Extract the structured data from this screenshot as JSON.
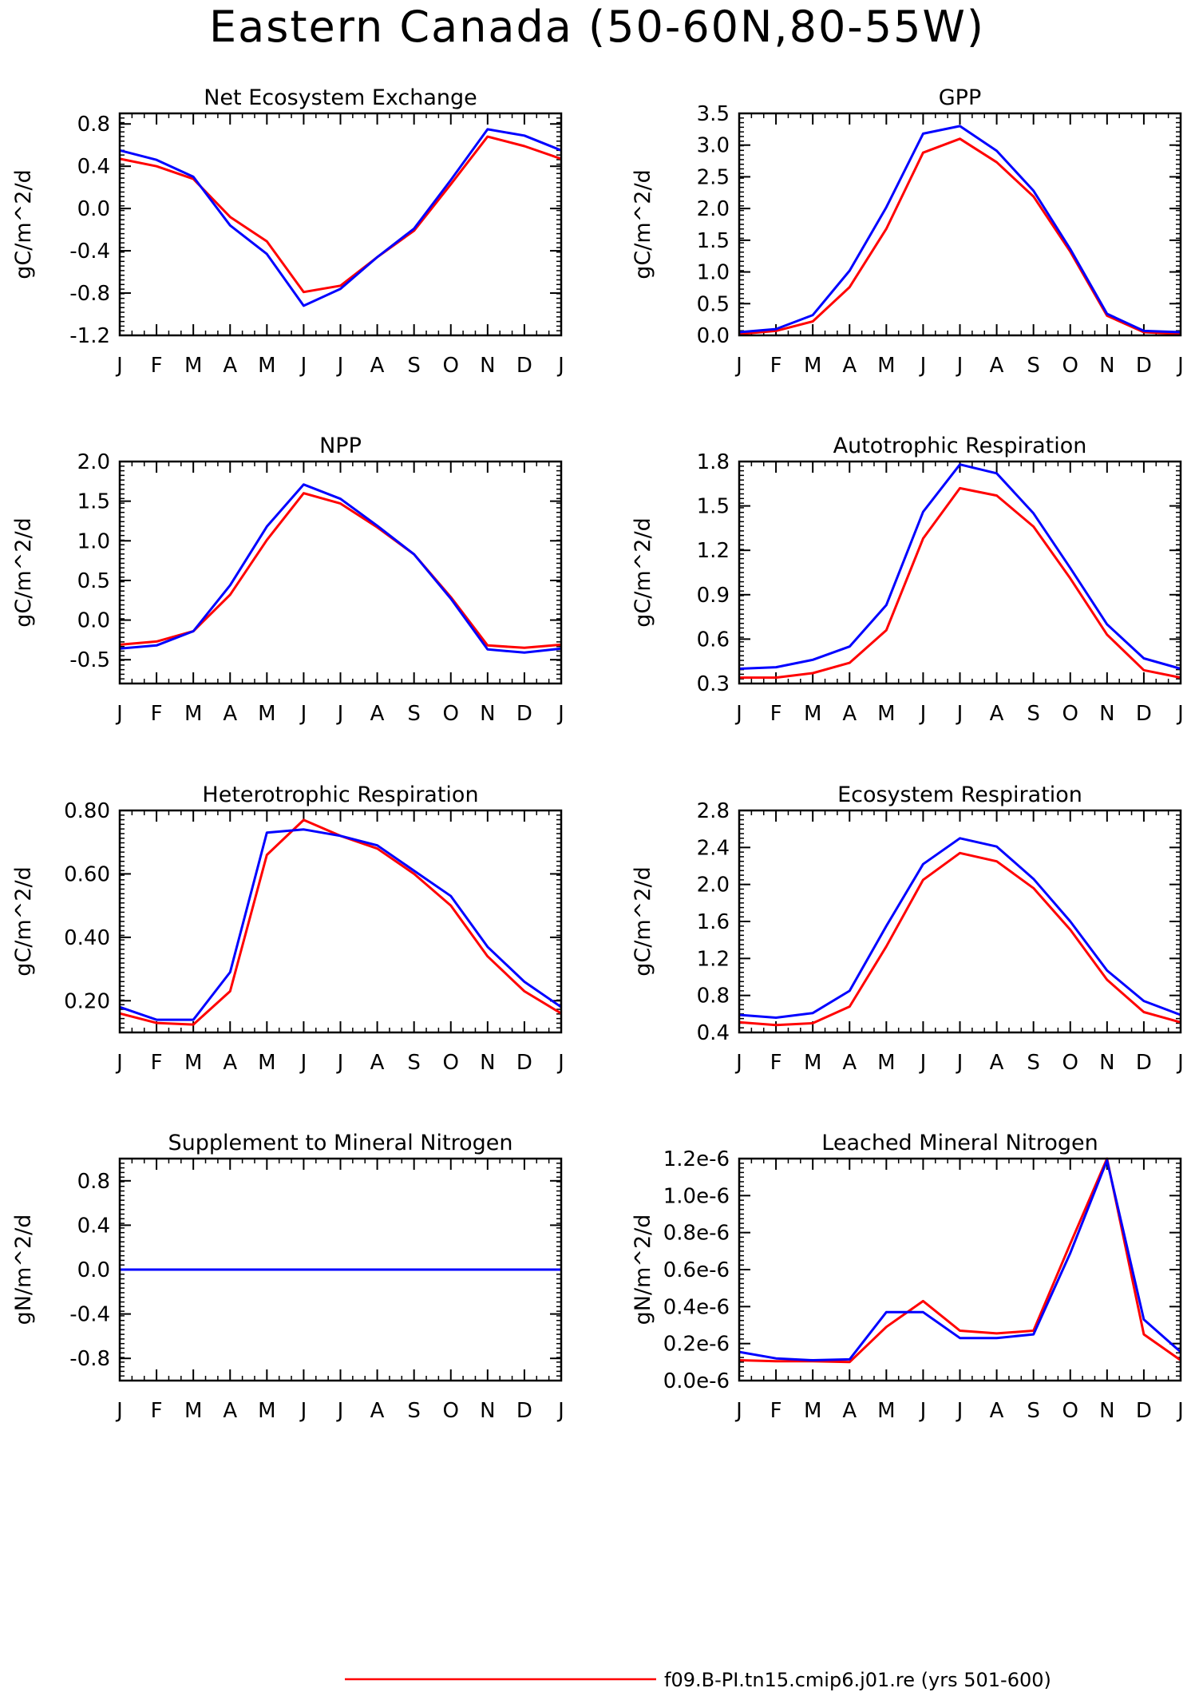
{
  "figure": {
    "title": "Eastern Canada (50-60N,80-55W)",
    "legend": [
      {
        "label": "f09.B-PI.tn15.cmip6.j01.re (yrs 501-600)",
        "color": "#ff0000"
      }
    ]
  },
  "chart_data": [
    {
      "type": "line",
      "title": "Net Ecosystem Exchange",
      "ylabel": "gC/m^2/d",
      "x": [
        "J",
        "F",
        "M",
        "A",
        "M",
        "J",
        "J",
        "A",
        "S",
        "O",
        "N",
        "D",
        "J"
      ],
      "ylim": [
        -1.2,
        0.9
      ],
      "yticks": [
        -1.2,
        -0.8,
        -0.4,
        0.0,
        0.4,
        0.8
      ],
      "ytick_labels": [
        "-1.2",
        "-0.8",
        "-0.4",
        "0.0",
        "0.4",
        "0.8"
      ],
      "series": [
        {
          "name": "f09.B-PI.tn15.cmip6.j01.re (yrs 501-600)",
          "color": "#ff0000",
          "values": [
            0.47,
            0.4,
            0.28,
            -0.08,
            -0.31,
            -0.79,
            -0.73,
            -0.46,
            -0.21,
            0.23,
            0.68,
            0.59,
            0.47
          ]
        },
        {
          "color": "#0000ff",
          "values": [
            0.55,
            0.46,
            0.3,
            -0.16,
            -0.43,
            -0.92,
            -0.76,
            -0.46,
            -0.19,
            0.27,
            0.75,
            0.69,
            0.55
          ]
        }
      ]
    },
    {
      "type": "line",
      "title": "GPP",
      "ylabel": "gC/m^2/d",
      "x": [
        "J",
        "F",
        "M",
        "A",
        "M",
        "J",
        "J",
        "A",
        "S",
        "O",
        "N",
        "D",
        "J"
      ],
      "ylim": [
        0.0,
        3.5
      ],
      "yticks": [
        0.0,
        0.5,
        1.0,
        1.5,
        2.0,
        2.5,
        3.0,
        3.5
      ],
      "ytick_labels": [
        "0.0",
        "0.5",
        "1.0",
        "1.5",
        "2.0",
        "2.5",
        "3.0",
        "3.5"
      ],
      "series": [
        {
          "color": "#ff0000",
          "values": [
            0.02,
            0.07,
            0.22,
            0.76,
            1.68,
            2.88,
            3.1,
            2.73,
            2.19,
            1.32,
            0.31,
            0.05,
            0.02
          ]
        },
        {
          "color": "#0000ff",
          "values": [
            0.05,
            0.1,
            0.32,
            1.02,
            2.02,
            3.18,
            3.3,
            2.91,
            2.28,
            1.36,
            0.34,
            0.07,
            0.05
          ]
        }
      ]
    },
    {
      "type": "line",
      "title": "NPP",
      "ylabel": "gC/m^2/d",
      "x": [
        "J",
        "F",
        "M",
        "A",
        "M",
        "J",
        "J",
        "A",
        "S",
        "O",
        "N",
        "D",
        "J"
      ],
      "ylim": [
        -0.8,
        2.0
      ],
      "yticks": [
        -0.5,
        0.0,
        0.5,
        1.0,
        1.5,
        2.0
      ],
      "ytick_labels": [
        "-0.5",
        "0.0",
        "0.5",
        "1.0",
        "1.5",
        "2.0"
      ],
      "series": [
        {
          "color": "#ff0000",
          "values": [
            -0.31,
            -0.27,
            -0.14,
            0.32,
            1.01,
            1.6,
            1.47,
            1.17,
            0.83,
            0.29,
            -0.32,
            -0.35,
            -0.31
          ]
        },
        {
          "color": "#0000ff",
          "values": [
            -0.36,
            -0.32,
            -0.14,
            0.44,
            1.18,
            1.71,
            1.53,
            1.19,
            0.83,
            0.27,
            -0.37,
            -0.41,
            -0.36
          ]
        }
      ]
    },
    {
      "type": "line",
      "title": "Autotrophic Respiration",
      "ylabel": "gC/m^2/d",
      "x": [
        "J",
        "F",
        "M",
        "A",
        "M",
        "J",
        "J",
        "A",
        "S",
        "O",
        "N",
        "D",
        "J"
      ],
      "ylim": [
        0.3,
        1.8
      ],
      "yticks": [
        0.3,
        0.6,
        0.9,
        1.2,
        1.5,
        1.8
      ],
      "ytick_labels": [
        "0.3",
        "0.6",
        "0.9",
        "1.2",
        "1.5",
        "1.8"
      ],
      "series": [
        {
          "color": "#ff0000",
          "values": [
            0.34,
            0.34,
            0.37,
            0.44,
            0.66,
            1.28,
            1.62,
            1.57,
            1.36,
            1.01,
            0.63,
            0.39,
            0.34
          ]
        },
        {
          "color": "#0000ff",
          "values": [
            0.4,
            0.41,
            0.46,
            0.55,
            0.83,
            1.46,
            1.78,
            1.72,
            1.45,
            1.08,
            0.7,
            0.47,
            0.4
          ]
        }
      ]
    },
    {
      "type": "line",
      "title": "Heterotrophic Respiration",
      "ylabel": "gC/m^2/d",
      "x": [
        "J",
        "F",
        "M",
        "A",
        "M",
        "J",
        "J",
        "A",
        "S",
        "O",
        "N",
        "D",
        "J"
      ],
      "ylim": [
        0.1,
        0.8
      ],
      "yticks": [
        0.2,
        0.4,
        0.6,
        0.8
      ],
      "ytick_labels": [
        "0.20",
        "0.40",
        "0.60",
        "0.80"
      ],
      "series": [
        {
          "color": "#ff0000",
          "values": [
            0.16,
            0.13,
            0.125,
            0.23,
            0.66,
            0.77,
            0.72,
            0.68,
            0.6,
            0.5,
            0.34,
            0.23,
            0.16
          ]
        },
        {
          "color": "#0000ff",
          "values": [
            0.18,
            0.14,
            0.14,
            0.29,
            0.73,
            0.74,
            0.72,
            0.69,
            0.61,
            0.53,
            0.37,
            0.26,
            0.18
          ]
        }
      ]
    },
    {
      "type": "line",
      "title": "Ecosystem Respiration",
      "ylabel": "gC/m^2/d",
      "x": [
        "J",
        "F",
        "M",
        "A",
        "M",
        "J",
        "J",
        "A",
        "S",
        "O",
        "N",
        "D",
        "J"
      ],
      "ylim": [
        0.4,
        2.8
      ],
      "yticks": [
        0.4,
        0.8,
        1.2,
        1.6,
        2.0,
        2.4,
        2.8
      ],
      "ytick_labels": [
        "0.4",
        "0.8",
        "1.2",
        "1.6",
        "2.0",
        "2.4",
        "2.8"
      ],
      "series": [
        {
          "color": "#ff0000",
          "values": [
            0.51,
            0.48,
            0.5,
            0.68,
            1.33,
            2.05,
            2.34,
            2.25,
            1.96,
            1.51,
            0.97,
            0.62,
            0.51
          ]
        },
        {
          "color": "#0000ff",
          "values": [
            0.59,
            0.56,
            0.61,
            0.85,
            1.55,
            2.22,
            2.5,
            2.41,
            2.06,
            1.6,
            1.07,
            0.74,
            0.59
          ]
        }
      ]
    },
    {
      "type": "line",
      "title": "Supplement to Mineral Nitrogen",
      "ylabel": "gN/m^2/d",
      "x": [
        "J",
        "F",
        "M",
        "A",
        "M",
        "J",
        "J",
        "A",
        "S",
        "O",
        "N",
        "D",
        "J"
      ],
      "ylim": [
        -1.0,
        1.0
      ],
      "yticks": [
        -0.8,
        -0.4,
        0.0,
        0.4,
        0.8
      ],
      "ytick_labels": [
        "-0.8",
        "-0.4",
        "0.0",
        "0.4",
        "0.8"
      ],
      "series": [
        {
          "color": "#ff0000",
          "values": [
            0,
            0,
            0,
            0,
            0,
            0,
            0,
            0,
            0,
            0,
            0,
            0,
            0
          ]
        },
        {
          "color": "#0000ff",
          "values": [
            0,
            0,
            0,
            0,
            0,
            0,
            0,
            0,
            0,
            0,
            0,
            0,
            0
          ]
        }
      ]
    },
    {
      "type": "line",
      "title": "Leached Mineral Nitrogen",
      "ylabel": "gN/m^2/d",
      "x": [
        "J",
        "F",
        "M",
        "A",
        "M",
        "J",
        "J",
        "A",
        "S",
        "O",
        "N",
        "D",
        "J"
      ],
      "ylim": [
        0.0,
        1.2e-06
      ],
      "yticks": [
        0.0,
        2e-07,
        4e-07,
        6e-07,
        8e-07,
        1e-06,
        1.2e-06
      ],
      "ytick_labels": [
        "0.0e-6",
        "0.2e-6",
        "0.4e-6",
        "0.6e-6",
        "0.8e-6",
        "1.0e-6",
        "1.2e-6"
      ],
      "series": [
        {
          "color": "#ff0000",
          "values": [
            1.1e-07,
            1.05e-07,
            1.05e-07,
            1e-07,
            2.9e-07,
            4.3e-07,
            2.7e-07,
            2.55e-07,
            2.7e-07,
            7.4e-07,
            1.2e-06,
            2.5e-07,
            1.1e-07
          ]
        },
        {
          "color": "#0000ff",
          "values": [
            1.55e-07,
            1.2e-07,
            1.1e-07,
            1.15e-07,
            3.7e-07,
            3.7e-07,
            2.3e-07,
            2.3e-07,
            2.5e-07,
            6.9e-07,
            1.19e-06,
            3.3e-07,
            1.55e-07
          ]
        }
      ]
    }
  ]
}
